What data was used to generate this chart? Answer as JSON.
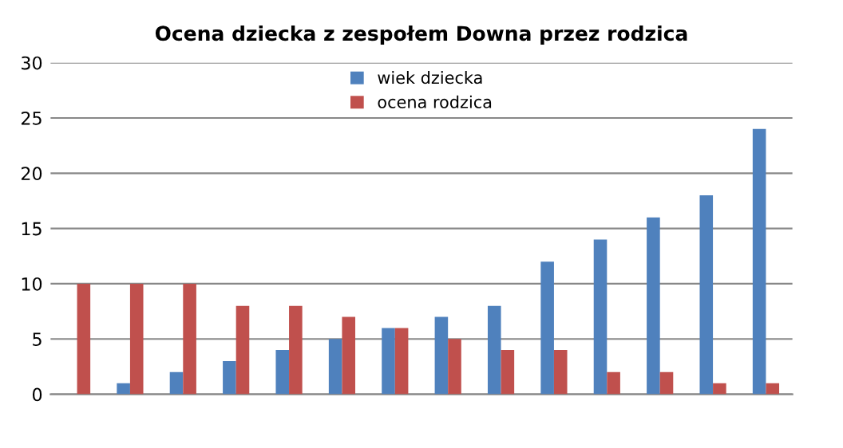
{
  "chart_data": {
    "type": "bar",
    "title": "Ocena dziecka z zespołem Downa przez rodzica",
    "categories": [
      null,
      null,
      null,
      null,
      null,
      null,
      null,
      null,
      null,
      null,
      null,
      null,
      null,
      null
    ],
    "series": [
      {
        "name": "wiek dziecka",
        "color": "#4f81bd",
        "values": [
          0,
          1,
          2,
          3,
          4,
          5,
          6,
          7,
          8,
          12,
          14,
          16,
          18,
          24
        ]
      },
      {
        "name": "ocena rodzica",
        "color": "#c0504d",
        "values": [
          10,
          10,
          10,
          8,
          8,
          7,
          6,
          5,
          4,
          4,
          2,
          2,
          1,
          1
        ]
      }
    ],
    "ylim": [
      0,
      30
    ],
    "yticks": [
      0,
      5,
      10,
      15,
      20,
      25,
      30
    ],
    "grid": "y",
    "legend": "top"
  }
}
